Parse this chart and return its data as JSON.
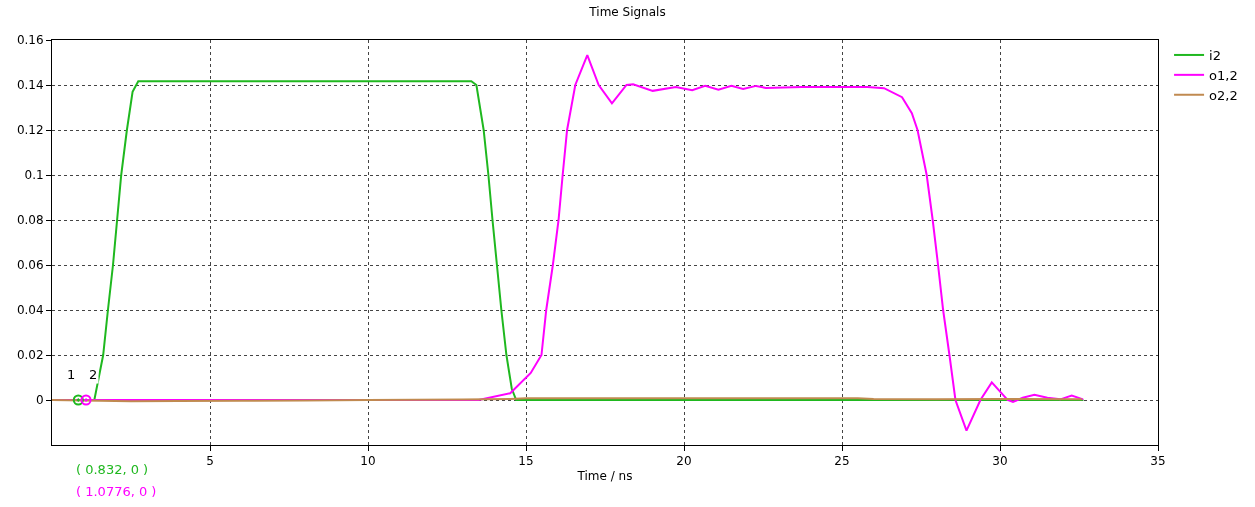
{
  "chart_data": {
    "type": "line",
    "title": "Time Signals",
    "xlabel": "Time / ns",
    "xlim": [
      0,
      35
    ],
    "xticks": [
      5,
      10,
      15,
      20,
      25,
      30,
      35
    ],
    "ylim": [
      -0.02,
      0.16
    ],
    "yticks": [
      0,
      0.02,
      0.04,
      0.06,
      0.08,
      0.1,
      0.12,
      0.14,
      0.16
    ],
    "grid": true,
    "legend": "top right",
    "line_style": "solid",
    "marker": "none",
    "series": [
      {
        "name": "i2",
        "color": "#1fb81f",
        "x": [
          0,
          1.34,
          1.62,
          1.77,
          1.93,
          2.06,
          2.19,
          2.37,
          2.55,
          2.73,
          13.27,
          13.43,
          13.66,
          13.81,
          13.94,
          14.08,
          14.22,
          14.38,
          14.55,
          14.69,
          32.64
        ],
        "values": [
          0,
          0,
          0.02,
          0.04,
          0.06,
          0.08,
          0.1,
          0.12,
          0.137,
          0.1417,
          0.1417,
          0.14,
          0.12,
          0.1,
          0.08,
          0.06,
          0.04,
          0.02,
          0.005,
          0,
          0
        ]
      },
      {
        "name": "o1,2",
        "color": "#ff00ff",
        "x": [
          0,
          13.5,
          14.5,
          15.15,
          15.49,
          15.64,
          15.85,
          16.03,
          16.16,
          16.3,
          16.56,
          16.94,
          17.3,
          17.72,
          18.18,
          18.39,
          19.01,
          19.74,
          20.26,
          20.67,
          21.09,
          21.5,
          21.87,
          22.28,
          22.59,
          23.73,
          25.81,
          26.33,
          26.9,
          27.21,
          27.39,
          27.68,
          27.87,
          28.04,
          28.2,
          28.4,
          28.59,
          28.94,
          29.38,
          29.74,
          30.24,
          30.41,
          30.72,
          31.09,
          31.5,
          31.91,
          32.27,
          32.63
        ],
        "values": [
          0,
          0,
          0.003,
          0.012,
          0.02,
          0.04,
          0.06,
          0.08,
          0.1,
          0.12,
          0.14,
          0.1533,
          0.14,
          0.1318,
          0.14,
          0.1403,
          0.1374,
          0.1391,
          0.1377,
          0.1396,
          0.1379,
          0.1396,
          0.1382,
          0.1396,
          0.1387,
          0.1391,
          0.1391,
          0.1386,
          0.1346,
          0.1275,
          0.12,
          0.1,
          0.08,
          0.06,
          0.04,
          0.02,
          0,
          -0.0136,
          0,
          0.0078,
          0,
          -0.0009,
          0.001,
          0.0023,
          0.001,
          0.0003,
          0.002,
          0.0003
        ]
      },
      {
        "name": "o2,2",
        "color": "#c08a50",
        "x": [
          0,
          2,
          2.5,
          4,
          6,
          8,
          10,
          13,
          14.5,
          15,
          20,
          25.5,
          26,
          28,
          30,
          32.6
        ],
        "values": [
          0,
          -0.0004,
          -0.0006,
          -0.0004,
          -0.0003,
          -0.0002,
          0,
          0.0002,
          0.0005,
          0.0008,
          0.0008,
          0.0008,
          0.0004,
          0.0003,
          0.0005,
          0.0003
        ]
      }
    ],
    "annotations": [
      {
        "text": "1",
        "x": 0.832,
        "y": 0
      },
      {
        "text": "2",
        "x": 1.0776,
        "y": 0
      },
      "( 0.832, 0 )",
      "( 1.0776, 0 )"
    ]
  }
}
